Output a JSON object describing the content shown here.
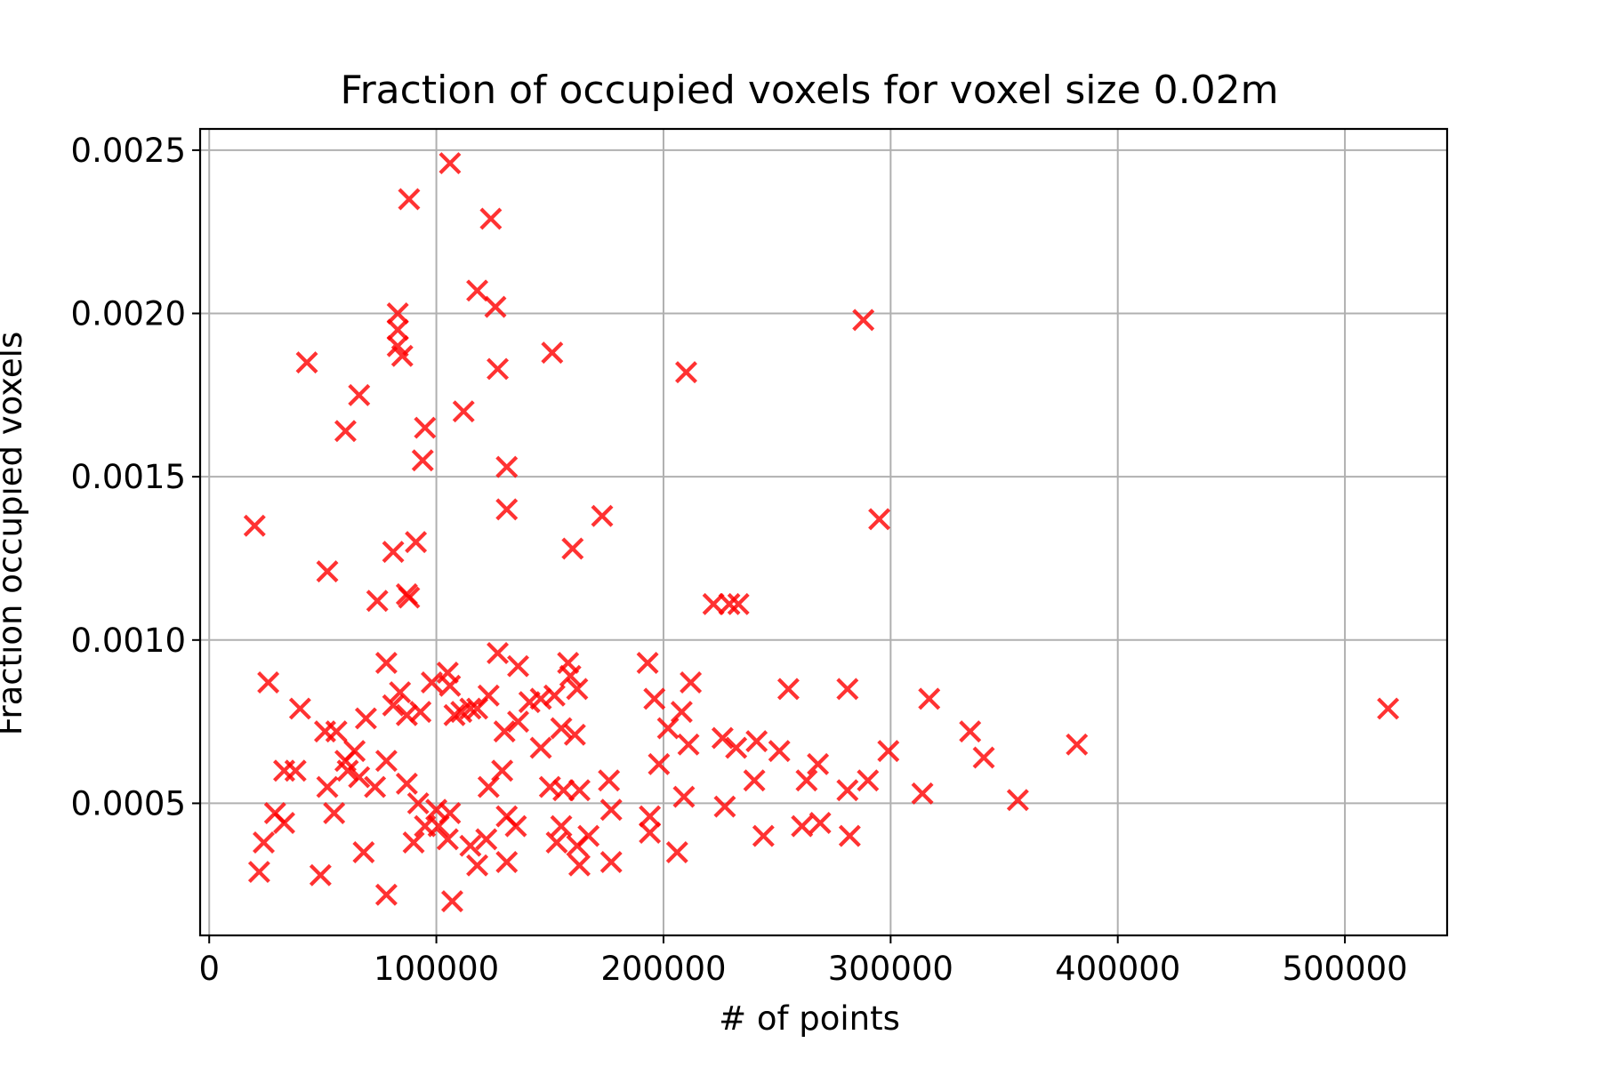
{
  "chart_data": {
    "type": "scatter",
    "title": "Fraction of occupied voxels for voxel size 0.02m",
    "xlabel": "# of points",
    "ylabel": "Fraction occupied voxels",
    "xlim": [
      -4000,
      545000
    ],
    "ylim": [
      9.55e-05,
      0.002565
    ],
    "xticks": [
      0,
      100000,
      200000,
      300000,
      400000,
      500000
    ],
    "xtick_labels": [
      "0",
      "100000",
      "200000",
      "300000",
      "400000",
      "500000"
    ],
    "yticks": [
      0.0005,
      0.001,
      0.0015,
      0.002,
      0.0025
    ],
    "ytick_labels": [
      "0.0005",
      "0.0010",
      "0.0015",
      "0.0020",
      "0.0025"
    ],
    "grid": true,
    "marker": "x",
    "color": "#ff0000",
    "alpha": 0.8,
    "series": [
      {
        "points": [
          [
            106000,
            0.00246
          ],
          [
            88000,
            0.00235
          ],
          [
            124000,
            0.00229
          ],
          [
            118000,
            0.00207
          ],
          [
            126000,
            0.00202
          ],
          [
            83000,
            0.002
          ],
          [
            83000,
            0.00195
          ],
          [
            83000,
            0.0019
          ],
          [
            85000,
            0.00187
          ],
          [
            43000,
            0.00185
          ],
          [
            151000,
            0.00188
          ],
          [
            127000,
            0.00183
          ],
          [
            210000,
            0.00182
          ],
          [
            288000,
            0.00198
          ],
          [
            66000,
            0.00175
          ],
          [
            112000,
            0.0017
          ],
          [
            95000,
            0.00165
          ],
          [
            60000,
            0.00164
          ],
          [
            94000,
            0.00155
          ],
          [
            131000,
            0.00153
          ],
          [
            131000,
            0.0014
          ],
          [
            173000,
            0.00138
          ],
          [
            295000,
            0.00137
          ],
          [
            20000,
            0.00135
          ],
          [
            91000,
            0.0013
          ],
          [
            81000,
            0.00127
          ],
          [
            160000,
            0.00128
          ],
          [
            52000,
            0.00121
          ],
          [
            87000,
            0.00114
          ],
          [
            74000,
            0.00112
          ],
          [
            88000,
            0.00113
          ],
          [
            222000,
            0.00111
          ],
          [
            229000,
            0.00111
          ],
          [
            233000,
            0.00111
          ],
          [
            127000,
            0.00096
          ],
          [
            78000,
            0.00093
          ],
          [
            136000,
            0.00092
          ],
          [
            193000,
            0.00093
          ],
          [
            158000,
            0.00093
          ],
          [
            159000,
            0.00089
          ],
          [
            105000,
            0.0009
          ],
          [
            98000,
            0.00087
          ],
          [
            106000,
            0.00086
          ],
          [
            26000,
            0.00087
          ],
          [
            162000,
            0.00085
          ],
          [
            212000,
            0.00087
          ],
          [
            255000,
            0.00085
          ],
          [
            281000,
            0.00085
          ],
          [
            317000,
            0.00082
          ],
          [
            123000,
            0.00083
          ],
          [
            84000,
            0.00084
          ],
          [
            146000,
            0.00082
          ],
          [
            152000,
            0.00083
          ],
          [
            196000,
            0.00082
          ],
          [
            519000,
            0.00079
          ],
          [
            40000,
            0.00079
          ],
          [
            81000,
            0.0008
          ],
          [
            93000,
            0.00078
          ],
          [
            108000,
            0.00077
          ],
          [
            111000,
            0.00078
          ],
          [
            115000,
            0.00079
          ],
          [
            118000,
            0.00079
          ],
          [
            69000,
            0.00076
          ],
          [
            87000,
            0.00077
          ],
          [
            136000,
            0.00075
          ],
          [
            141000,
            0.00081
          ],
          [
            208000,
            0.00078
          ],
          [
            202000,
            0.00073
          ],
          [
            51000,
            0.00072
          ],
          [
            56000,
            0.00072
          ],
          [
            130000,
            0.00072
          ],
          [
            155000,
            0.00073
          ],
          [
            161000,
            0.00071
          ],
          [
            335000,
            0.00072
          ],
          [
            146000,
            0.00067
          ],
          [
            64000,
            0.00066
          ],
          [
            211000,
            0.00068
          ],
          [
            226000,
            0.0007
          ],
          [
            232000,
            0.00067
          ],
          [
            241000,
            0.00069
          ],
          [
            251000,
            0.00066
          ],
          [
            299000,
            0.00066
          ],
          [
            382000,
            0.00068
          ],
          [
            341000,
            0.00064
          ],
          [
            60000,
            0.00063
          ],
          [
            78000,
            0.00063
          ],
          [
            268000,
            0.00062
          ],
          [
            198000,
            0.00062
          ],
          [
            33000,
            0.0006
          ],
          [
            38000,
            0.0006
          ],
          [
            61000,
            0.0006
          ],
          [
            66000,
            0.00058
          ],
          [
            129000,
            0.0006
          ],
          [
            176000,
            0.00057
          ],
          [
            240000,
            0.00057
          ],
          [
            263000,
            0.00057
          ],
          [
            290000,
            0.00057
          ],
          [
            73000,
            0.00055
          ],
          [
            87000,
            0.00056
          ],
          [
            52000,
            0.00055
          ],
          [
            123000,
            0.00055
          ],
          [
            150000,
            0.00055
          ],
          [
            156000,
            0.00054
          ],
          [
            163000,
            0.00054
          ],
          [
            281000,
            0.00054
          ],
          [
            209000,
            0.00052
          ],
          [
            314000,
            0.00053
          ],
          [
            356000,
            0.00051
          ],
          [
            29000,
            0.00047
          ],
          [
            33000,
            0.00044
          ],
          [
            55000,
            0.00047
          ],
          [
            92000,
            0.0005
          ],
          [
            100000,
            0.00048
          ],
          [
            106000,
            0.00047
          ],
          [
            131000,
            0.00046
          ],
          [
            177000,
            0.00048
          ],
          [
            194000,
            0.00046
          ],
          [
            227000,
            0.00049
          ],
          [
            95000,
            0.00043
          ],
          [
            101000,
            0.00043
          ],
          [
            135000,
            0.00043
          ],
          [
            155000,
            0.00043
          ],
          [
            194000,
            0.00041
          ],
          [
            261000,
            0.00043
          ],
          [
            269000,
            0.00044
          ],
          [
            24000,
            0.00038
          ],
          [
            90000,
            0.00038
          ],
          [
            105000,
            0.00039
          ],
          [
            115000,
            0.00037
          ],
          [
            122000,
            0.00039
          ],
          [
            153000,
            0.00038
          ],
          [
            162000,
            0.00037
          ],
          [
            167000,
            0.0004
          ],
          [
            244000,
            0.0004
          ],
          [
            282000,
            0.0004
          ],
          [
            68000,
            0.00035
          ],
          [
            131000,
            0.00032
          ],
          [
            118000,
            0.00031
          ],
          [
            163000,
            0.00031
          ],
          [
            177000,
            0.00032
          ],
          [
            206000,
            0.00035
          ],
          [
            22000,
            0.00029
          ],
          [
            49000,
            0.00028
          ],
          [
            78000,
            0.00022
          ],
          [
            107000,
            0.0002
          ]
        ]
      }
    ]
  }
}
